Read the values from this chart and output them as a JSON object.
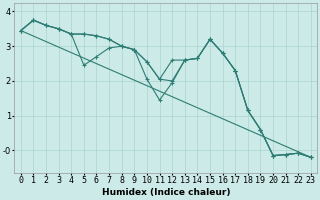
{
  "xlabel": "Humidex (Indice chaleur)",
  "bg_color": "#cceae7",
  "line_color": "#2e7d74",
  "grid_color": "#aad4d0",
  "xlim": [
    -0.5,
    23.5
  ],
  "ylim": [
    -0.65,
    4.25
  ],
  "yticks": [
    0,
    1,
    2,
    3,
    4
  ],
  "ytick_labels": [
    "-0",
    "1",
    "2",
    "3",
    "4"
  ],
  "xticks": [
    0,
    1,
    2,
    3,
    4,
    5,
    6,
    7,
    8,
    9,
    10,
    11,
    12,
    13,
    14,
    15,
    16,
    17,
    18,
    19,
    20,
    21,
    22,
    23
  ],
  "lines": [
    {
      "x": [
        0,
        1,
        2,
        3,
        4,
        5,
        6,
        7,
        8,
        9,
        10,
        11,
        12,
        13,
        14,
        15,
        16,
        17,
        18,
        19,
        20,
        21,
        22,
        23
      ],
      "y": [
        3.45,
        3.75,
        3.6,
        3.5,
        3.35,
        2.45,
        2.7,
        2.95,
        3.0,
        2.9,
        2.05,
        1.45,
        1.95,
        2.6,
        2.65,
        3.2,
        2.8,
        2.3,
        1.15,
        0.6,
        -0.15,
        -0.12,
        -0.08,
        -0.2
      ]
    },
    {
      "x": [
        0,
        1,
        2,
        3,
        4,
        5,
        6,
        7,
        8,
        9,
        10,
        11,
        12,
        13,
        14,
        15,
        16,
        17,
        18,
        19,
        20,
        21,
        22,
        23
      ],
      "y": [
        3.45,
        3.75,
        3.6,
        3.5,
        3.35,
        3.35,
        3.3,
        3.2,
        3.0,
        2.9,
        2.55,
        2.05,
        2.6,
        2.6,
        2.65,
        3.2,
        2.8,
        2.3,
        1.15,
        0.6,
        -0.15,
        -0.12,
        -0.08,
        -0.2
      ]
    },
    {
      "x": [
        0,
        1,
        2,
        3,
        4,
        5,
        6,
        7,
        8,
        9,
        10,
        11,
        12,
        13,
        14,
        15,
        16,
        17,
        18,
        19,
        20,
        21,
        22,
        23
      ],
      "y": [
        3.45,
        3.75,
        3.6,
        3.5,
        3.35,
        3.35,
        3.3,
        3.2,
        3.0,
        2.9,
        2.55,
        2.05,
        2.0,
        2.6,
        2.65,
        3.2,
        2.8,
        2.3,
        1.15,
        0.6,
        -0.15,
        -0.12,
        -0.08,
        -0.2
      ]
    },
    {
      "x": [
        0,
        23
      ],
      "y": [
        3.45,
        -0.2
      ]
    }
  ]
}
